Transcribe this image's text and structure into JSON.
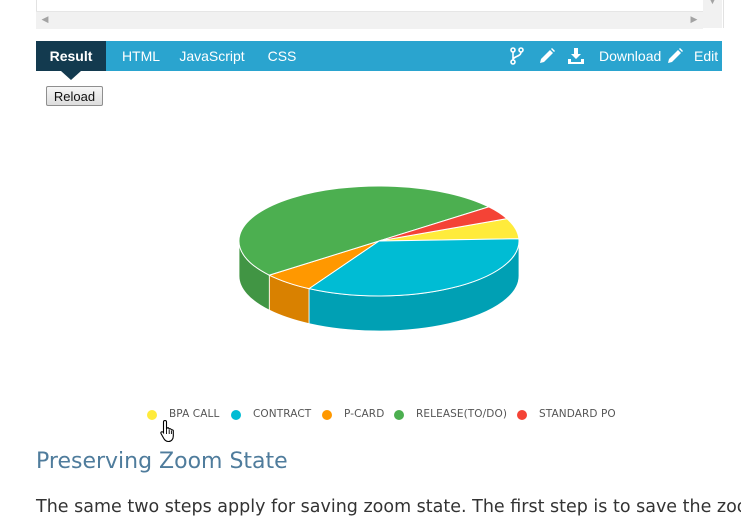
{
  "tabs": [
    {
      "label": "Result",
      "active": true
    },
    {
      "label": "HTML",
      "active": false
    },
    {
      "label": "JavaScript",
      "active": false
    },
    {
      "label": "CSS",
      "active": false
    }
  ],
  "toolbar": {
    "download_label": "Download",
    "edit_label": "Edit",
    "icons": [
      "fork-icon",
      "pencil-icon",
      "download-icon",
      "pencil-icon"
    ]
  },
  "reload_label": "Reload",
  "chart_data": {
    "type": "pie",
    "style": "3d",
    "title": "",
    "categories": [
      "BPA CALL",
      "CONTRACT",
      "P-CARD",
      "RELEASE(TO/DO)",
      "STANDARD PO"
    ],
    "values": [
      6,
      34,
      6,
      50,
      4
    ],
    "colors": [
      "#ffeb3b",
      "#00bcd4",
      "#ff9800",
      "#4caf50",
      "#f44336"
    ],
    "legend_position": "bottom"
  },
  "section": {
    "title": "Preserving Zoom State",
    "paragraph": "The same two steps apply for saving zoom state. The first step is to save the zoom"
  },
  "colors": {
    "toolbar": "#2aa4cf",
    "active_tab": "#133a4f",
    "heading": "#4f7c9c"
  }
}
